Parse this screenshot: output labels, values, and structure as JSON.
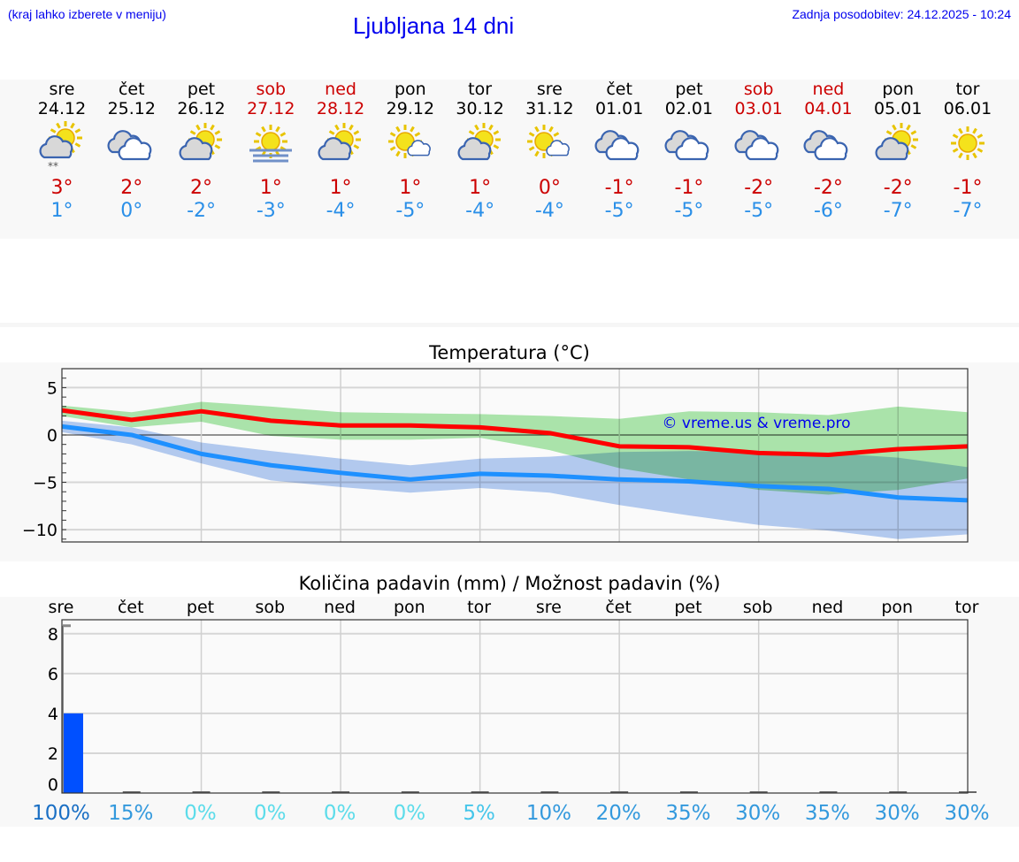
{
  "header": {
    "hint": "(kraj lahko izberete v meniju)",
    "title": "Ljubljana 14 dni",
    "updated": "Zadnja posodobitev: 24.12.2025 - 10:24"
  },
  "days": [
    {
      "name": "sre",
      "date": "24.12",
      "weekend": false,
      "icon": "partly-cloudy-snow-icon",
      "max": "3°",
      "min": "1°"
    },
    {
      "name": "čet",
      "date": "25.12",
      "weekend": false,
      "icon": "cloudy-icon",
      "max": "2°",
      "min": "0°"
    },
    {
      "name": "pet",
      "date": "26.12",
      "weekend": false,
      "icon": "partly-cloudy-icon",
      "max": "2°",
      "min": "-2°"
    },
    {
      "name": "sob",
      "date": "27.12",
      "weekend": true,
      "icon": "fog-sun-icon",
      "max": "1°",
      "min": "-3°"
    },
    {
      "name": "ned",
      "date": "28.12",
      "weekend": true,
      "icon": "partly-cloudy-icon",
      "max": "1°",
      "min": "-4°"
    },
    {
      "name": "pon",
      "date": "29.12",
      "weekend": false,
      "icon": "mostly-sunny-icon",
      "max": "1°",
      "min": "-5°"
    },
    {
      "name": "tor",
      "date": "30.12",
      "weekend": false,
      "icon": "partly-cloudy-icon",
      "max": "1°",
      "min": "-4°"
    },
    {
      "name": "sre",
      "date": "31.12",
      "weekend": false,
      "icon": "mostly-sunny-icon",
      "max": "0°",
      "min": "-4°"
    },
    {
      "name": "čet",
      "date": "01.01",
      "weekend": false,
      "icon": "cloudy-icon",
      "max": "-1°",
      "min": "-5°"
    },
    {
      "name": "pet",
      "date": "02.01",
      "weekend": false,
      "icon": "cloudy-icon",
      "max": "-1°",
      "min": "-5°"
    },
    {
      "name": "sob",
      "date": "03.01",
      "weekend": true,
      "icon": "cloudy-icon",
      "max": "-2°",
      "min": "-5°"
    },
    {
      "name": "ned",
      "date": "04.01",
      "weekend": true,
      "icon": "cloudy-icon",
      "max": "-2°",
      "min": "-6°"
    },
    {
      "name": "pon",
      "date": "05.01",
      "weekend": false,
      "icon": "partly-cloudy-icon",
      "max": "-2°",
      "min": "-7°"
    },
    {
      "name": "tor",
      "date": "06.01",
      "weekend": false,
      "icon": "sunny-icon",
      "max": "-1°",
      "min": "-7°"
    }
  ],
  "chart_data": [
    {
      "type": "line",
      "title": "Temperatura (°C)",
      "ylim": [
        -11.3,
        7
      ],
      "yticks": [
        5,
        0,
        -5,
        -10
      ],
      "ytick_labels": [
        "5",
        "0",
        "−5",
        "−10"
      ],
      "grid": true,
      "annotation": "© vreme.us & vreme.pro",
      "series": [
        {
          "role": "max",
          "color": "#ff0000",
          "values": [
            2.6,
            1.6,
            2.5,
            1.5,
            1.0,
            1.0,
            0.8,
            0.2,
            -1.2,
            -1.3,
            -1.9,
            -2.1,
            -1.5,
            -1.2
          ],
          "band_color": "#aee8ae",
          "band_upper": [
            3.1,
            2.4,
            3.5,
            3.0,
            2.4,
            2.3,
            2.2,
            2.0,
            1.7,
            2.5,
            2.4,
            2.1,
            3.0,
            2.4
          ],
          "band_lower": [
            2.0,
            0.8,
            1.4,
            -0.1,
            -0.5,
            -0.5,
            -0.3,
            -1.6,
            -3.5,
            -4.7,
            -5.8,
            -6.3,
            -5.8,
            -4.6
          ]
        },
        {
          "role": "min",
          "color": "#1e90ff",
          "values": [
            0.9,
            0.0,
            -2.0,
            -3.2,
            -4.0,
            -4.7,
            -4.1,
            -4.3,
            -4.7,
            -4.9,
            -5.4,
            -5.7,
            -6.6,
            -6.9
          ],
          "band_color": "#aec8f2",
          "band_upper": [
            1.5,
            0.8,
            -0.8,
            -1.7,
            -2.5,
            -3.2,
            -2.5,
            -2.3,
            -1.8,
            -1.7,
            -1.8,
            -1.9,
            -2.4,
            -3.4
          ],
          "band_lower": [
            0.3,
            -1.0,
            -3.0,
            -4.8,
            -5.5,
            -6.1,
            -5.6,
            -6.1,
            -7.4,
            -8.5,
            -9.5,
            -10.1,
            -11.0,
            -10.5
          ]
        }
      ]
    },
    {
      "type": "bar",
      "title": "Količina padavin (mm) / Možnost padavin (%)",
      "categories": [
        "sre",
        "čet",
        "pet",
        "sob",
        "ned",
        "pon",
        "tor",
        "sre",
        "čet",
        "pet",
        "sob",
        "ned",
        "pon",
        "tor"
      ],
      "values": [
        4.0,
        0,
        0,
        0,
        0,
        0,
        0,
        0,
        0,
        0,
        0,
        0,
        0,
        0
      ],
      "max_marker": 8.4,
      "bar_color": "#0050ff",
      "ylim": [
        0,
        8.7
      ],
      "yticks": [
        0,
        2,
        4,
        6,
        8
      ],
      "grid": true,
      "probability": [
        "100%",
        "15%",
        "0%",
        "0%",
        "0%",
        "0%",
        "5%",
        "10%",
        "20%",
        "35%",
        "30%",
        "35%",
        "30%",
        "30%"
      ]
    }
  ]
}
